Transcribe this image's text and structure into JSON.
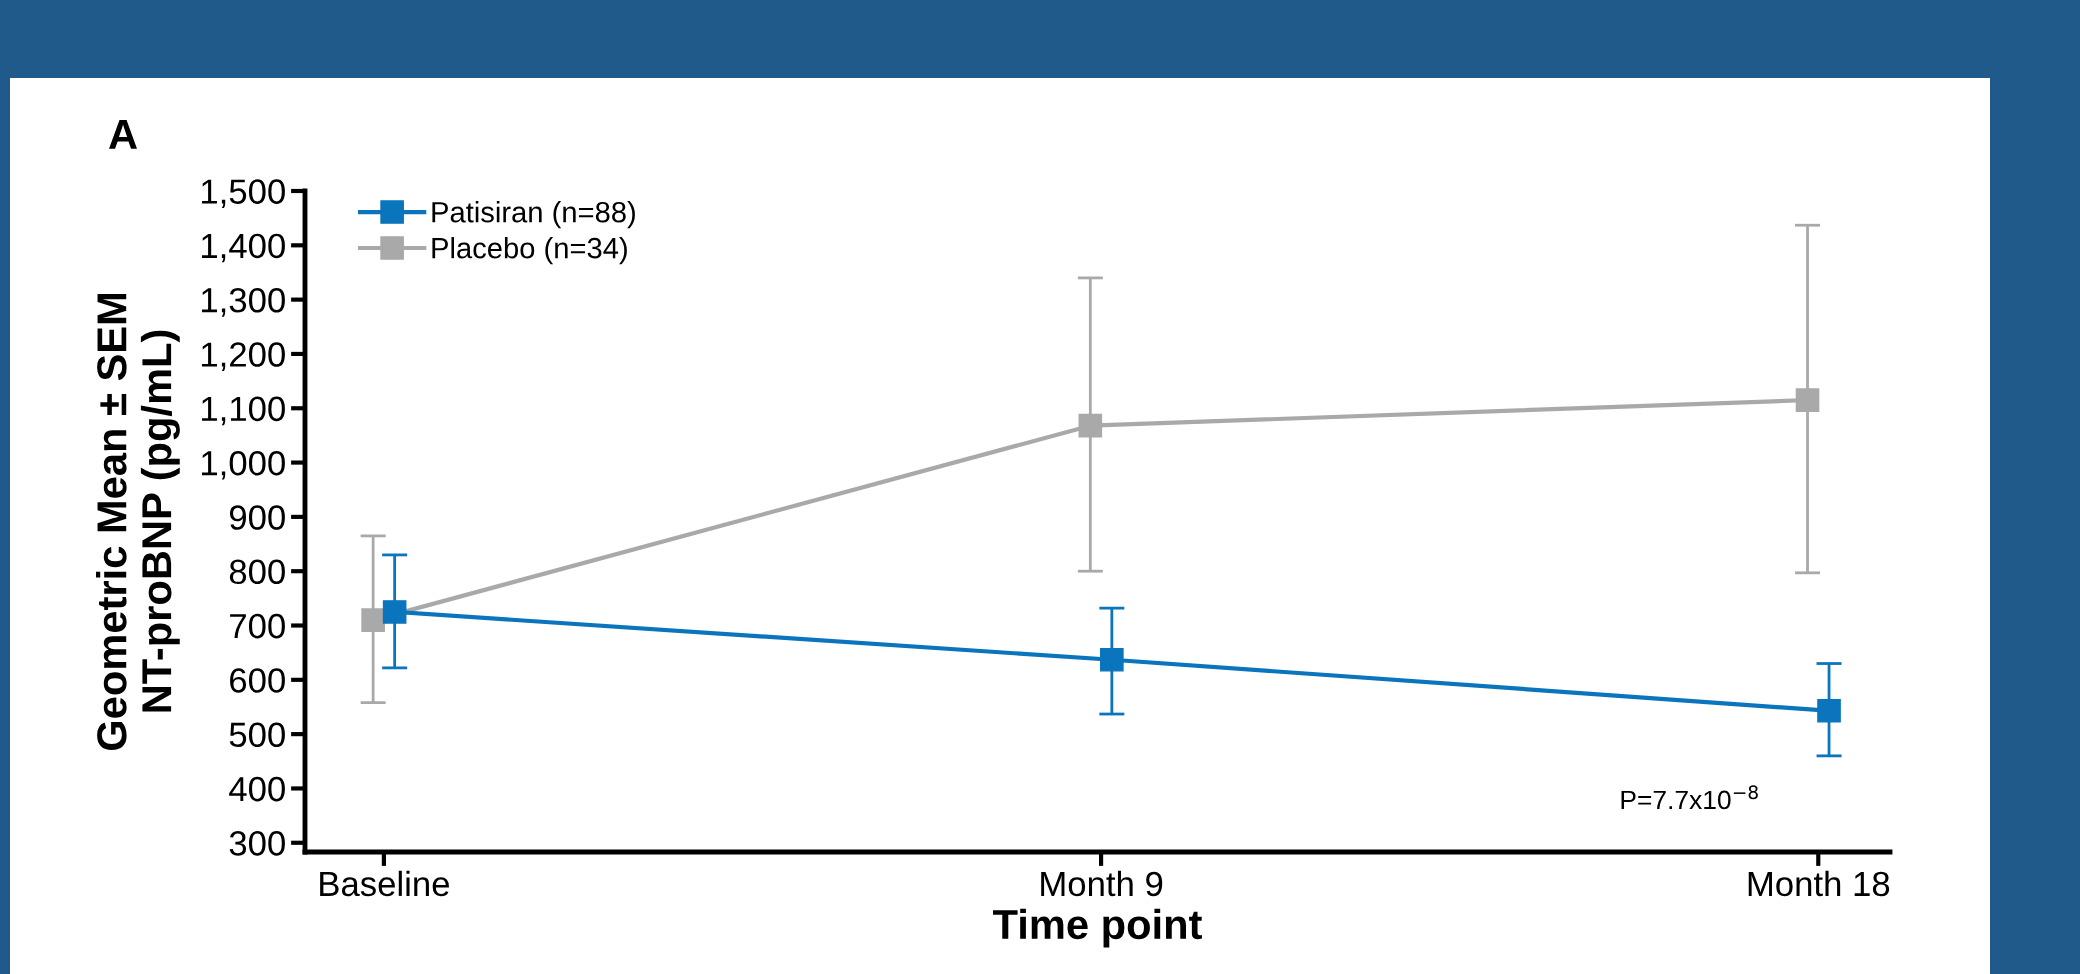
{
  "chart_data": {
    "type": "line",
    "title": "A",
    "xlabel": "Time point",
    "ylabel": "Geometric Mean ± SEM\nNT-proBNP (pg/mL)",
    "categories": [
      "Baseline",
      "Month 9",
      "Month 18"
    ],
    "series": [
      {
        "name": "Patisiran (n=88)",
        "color": "#0a74bd",
        "values": [
          725,
          637,
          543
        ],
        "errors": [
          [
            622,
            830
          ],
          [
            537,
            732
          ],
          [
            460,
            630
          ]
        ]
      },
      {
        "name": "Placebo (n=34)",
        "color": "#a9a9a9",
        "values": [
          710,
          1068,
          1115
        ],
        "errors": [
          [
            558,
            865
          ],
          [
            800,
            1340
          ],
          [
            797,
            1437
          ]
        ]
      }
    ],
    "ylim": [
      283,
      1500
    ],
    "yticks": [
      {
        "value": 300,
        "label": "300"
      },
      {
        "value": 400,
        "label": "400"
      },
      {
        "value": 500,
        "label": "500"
      },
      {
        "value": 600,
        "label": "600"
      },
      {
        "value": 700,
        "label": "700"
      },
      {
        "value": 800,
        "label": "800"
      },
      {
        "value": 900,
        "label": "900"
      },
      {
        "value": 1000,
        "label": "1,000"
      },
      {
        "value": 1100,
        "label": "1,100"
      },
      {
        "value": 1200,
        "label": "1,200"
      },
      {
        "value": 1300,
        "label": "1,300"
      },
      {
        "value": 1400,
        "label": "1,400"
      },
      {
        "value": 1500,
        "label": "1,500"
      }
    ],
    "annotations": [
      "P=7.7x10$^{−8}$"
    ],
    "marker": "square",
    "line_style": "solid",
    "grid": false,
    "legend": "top left"
  }
}
